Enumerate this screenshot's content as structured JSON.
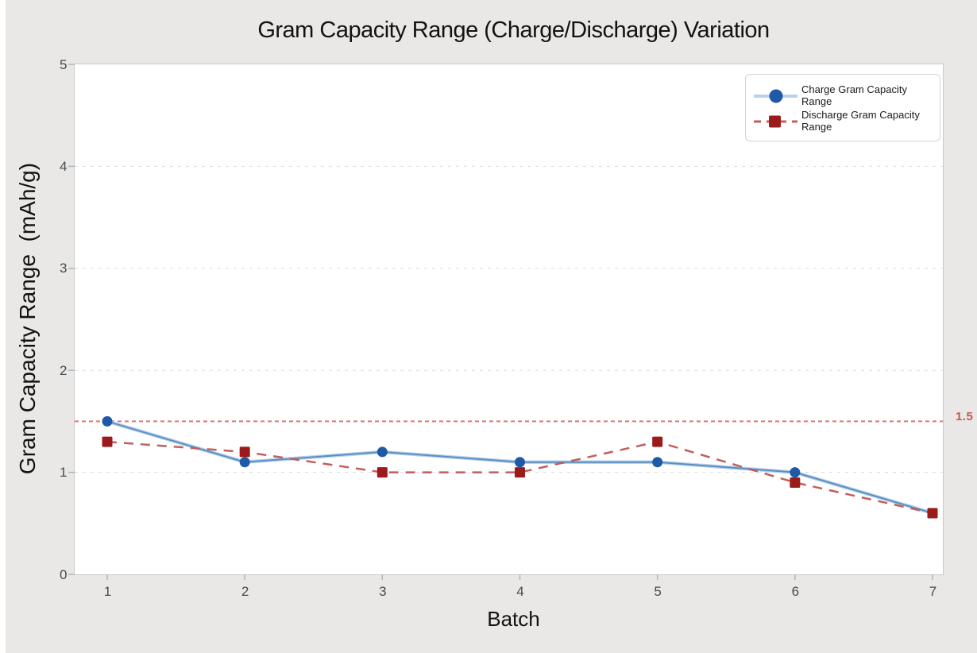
{
  "chart_data": {
    "type": "line",
    "title": "Gram Capacity Range (Charge/Discharge) Variation",
    "xlabel": "Batch",
    "ylabel": "Gram Capacity Range  (mAh/g)",
    "categories": [
      1,
      2,
      3,
      4,
      5,
      6,
      7
    ],
    "series": [
      {
        "name": "Charge Gram Capacity Range",
        "values": [
          1.5,
          1.1,
          1.2,
          1.1,
          1.1,
          1.0,
          0.6
        ],
        "marker": "circle",
        "line_style": "solid",
        "line_color": "#5b8fc4",
        "line_halo": "#b9d2ea",
        "marker_color": "#1f5aa8"
      },
      {
        "name": "Discharge Gram Capacity Range",
        "values": [
          1.3,
          1.2,
          1.0,
          1.0,
          1.3,
          0.9,
          0.6
        ],
        "marker": "square",
        "line_style": "dashed",
        "line_color": "#c05f5f",
        "marker_color": "#9b1b1b"
      }
    ],
    "reference_line": {
      "value": 1.5,
      "label": "1.5",
      "color": "#e57373",
      "label_color": "#c5574f"
    },
    "ylim": [
      0,
      5
    ],
    "yticks": [
      0,
      1,
      2,
      3,
      4,
      5
    ],
    "xticks": [
      1,
      2,
      3,
      4,
      5,
      6,
      7
    ],
    "gridlines": [
      1,
      2,
      3,
      4
    ],
    "grid": "horizontal-dashed",
    "legend_position": "top-right"
  },
  "colors": {
    "background": "#e9e8e6",
    "plot_background": "#ffffff",
    "axis": "#c9c9c9",
    "tick_mark": "#b5b5b5",
    "gridline": "#dcdcdc",
    "tick_label": "#4a4a4a",
    "text": "#121212"
  }
}
